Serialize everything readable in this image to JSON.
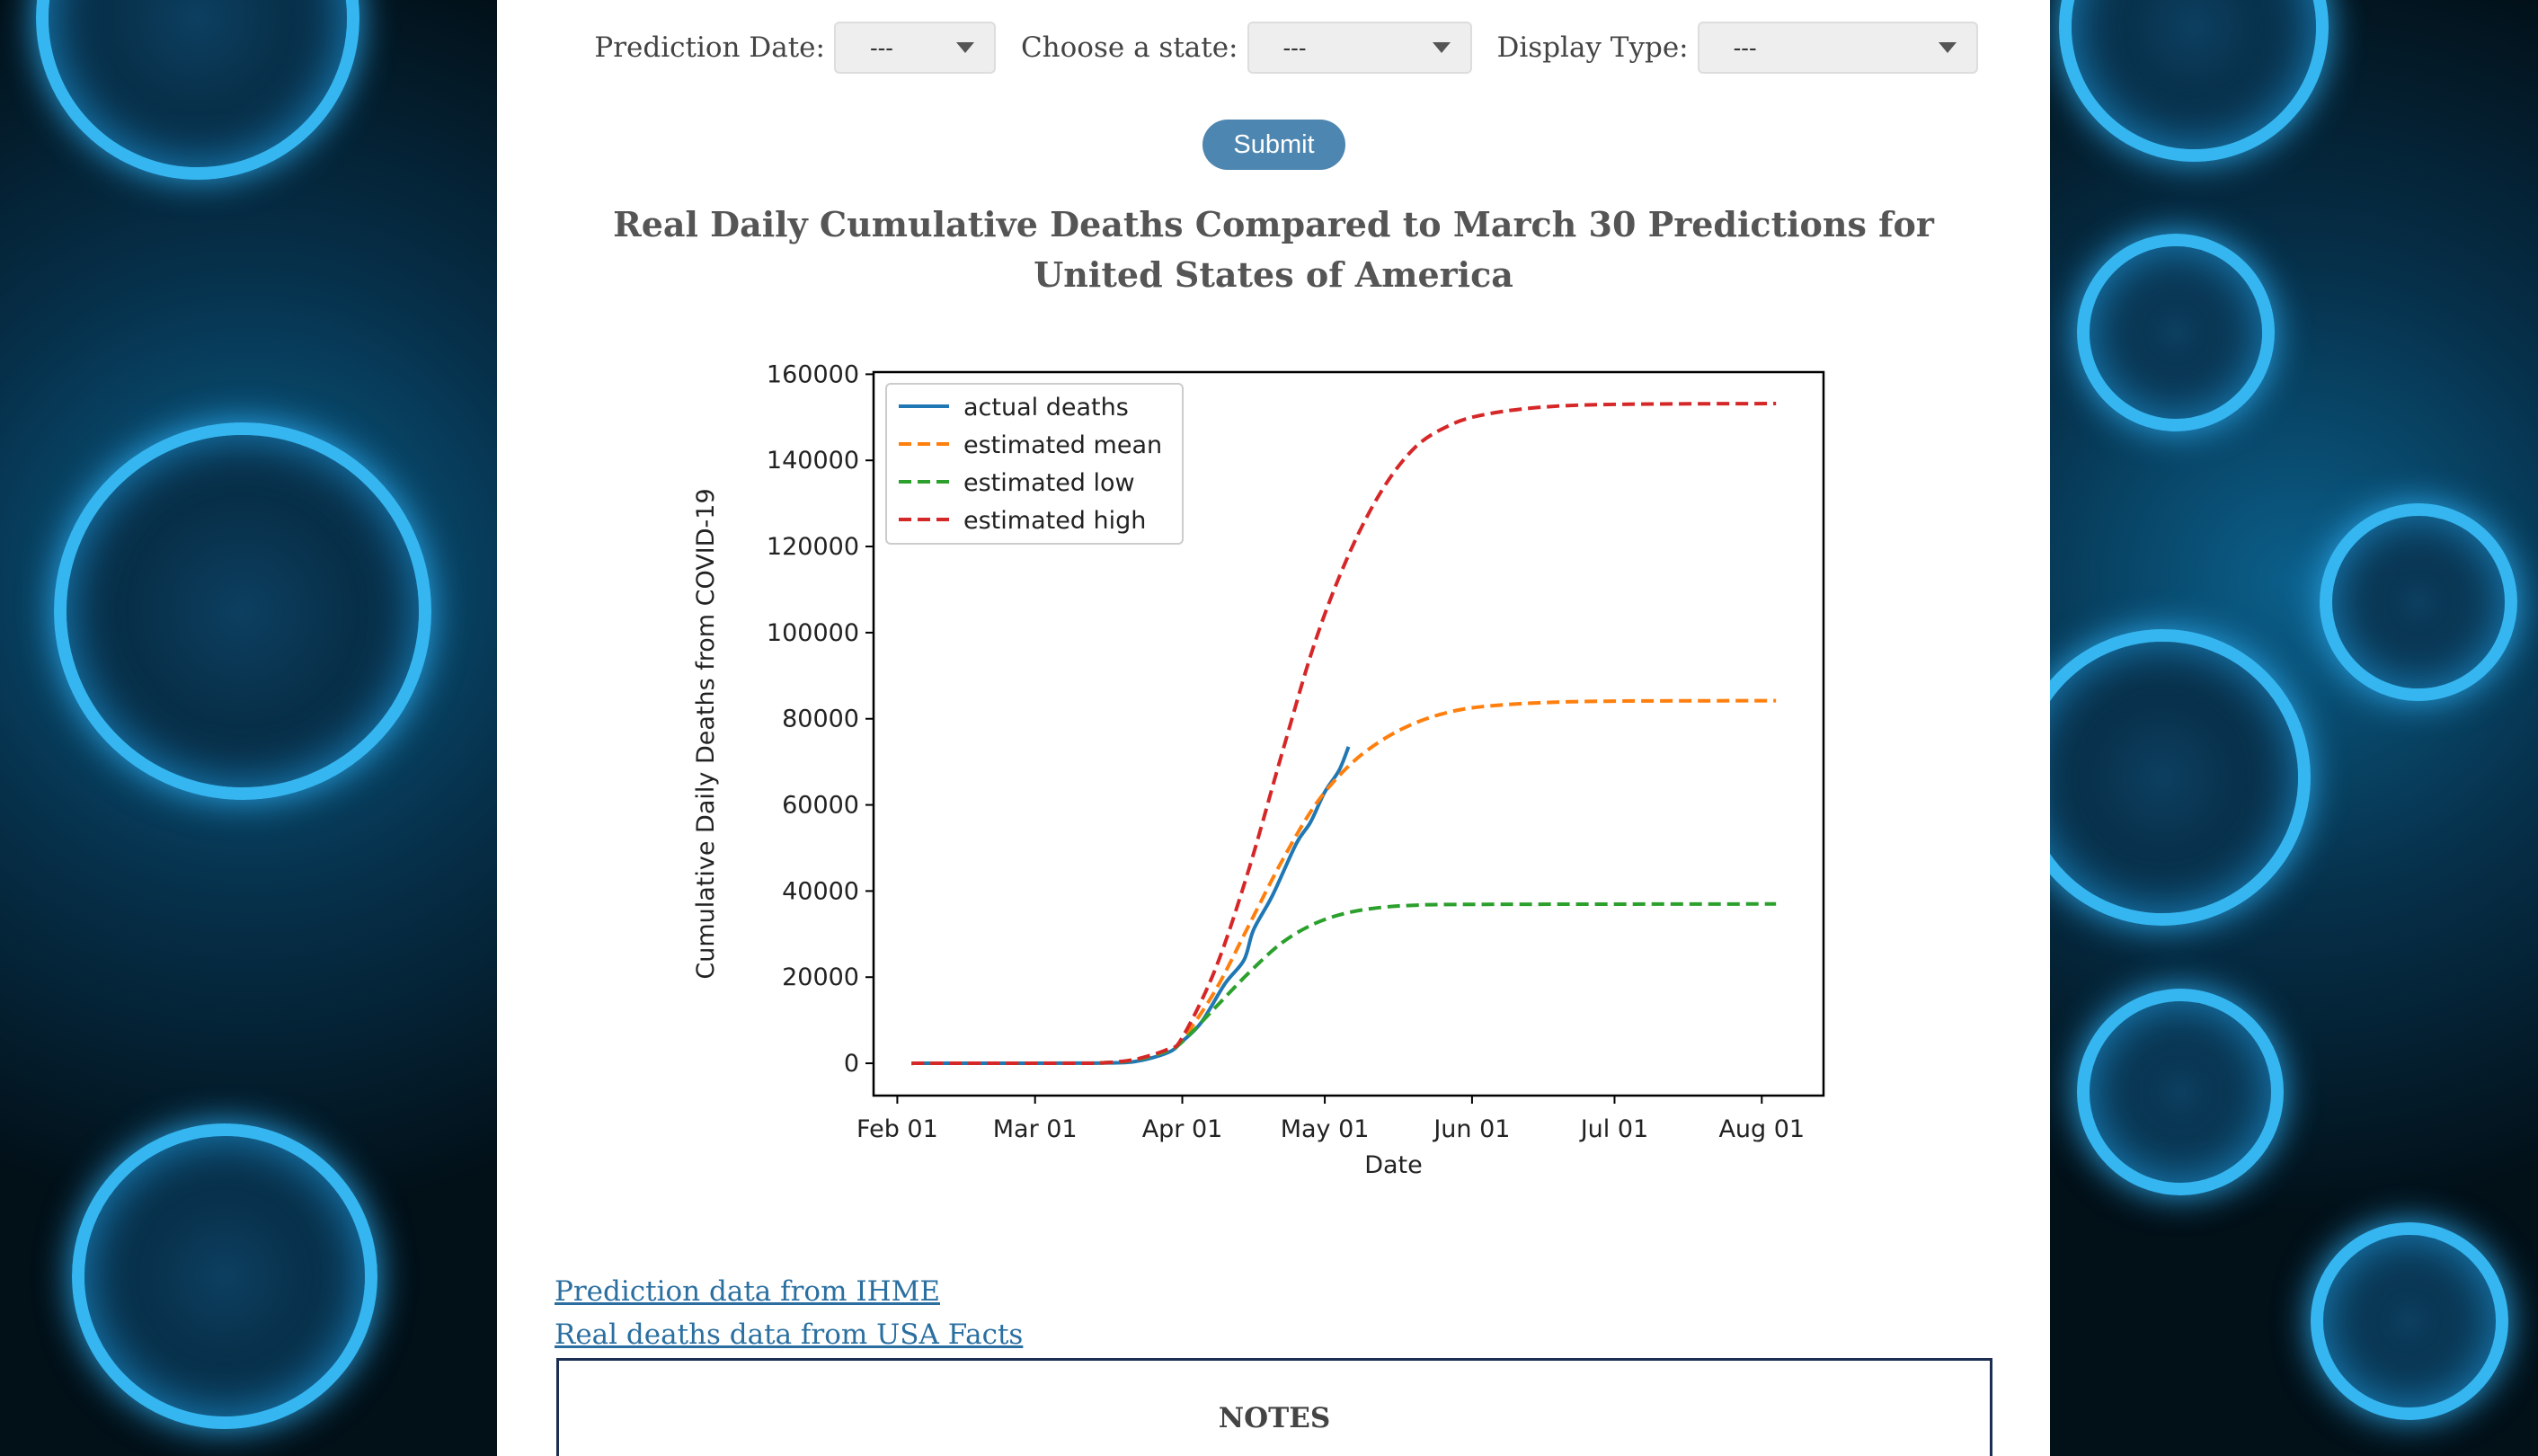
{
  "controls": {
    "prediction_date": {
      "label": "Prediction Date:",
      "value": "---"
    },
    "state": {
      "label": "Choose a state:",
      "value": "---"
    },
    "display_type": {
      "label": "Display Type:",
      "value": "---"
    },
    "submit_label": "Submit"
  },
  "title": "Real Daily Cumulative Deaths Compared to March 30 Predictions for United States of America",
  "links": {
    "ihme": "Prediction data from IHME",
    "usafacts": "Real deaths data from USA Facts"
  },
  "notes": {
    "heading": "NOTES"
  },
  "chart_data": {
    "type": "line",
    "xlabel": "Date",
    "ylabel": "Cumulative Daily Deaths from COVID-19",
    "x_ticks": [
      "Feb 01",
      "Mar 01",
      "Apr 01",
      "May 01",
      "Jun 01",
      "Jul 01",
      "Aug 01"
    ],
    "x_tick_dates": [
      "2020-02-01",
      "2020-03-01",
      "2020-04-01",
      "2020-05-01",
      "2020-06-01",
      "2020-07-01",
      "2020-08-01"
    ],
    "y_ticks": [
      "0",
      "20000",
      "40000",
      "60000",
      "80000",
      "100000",
      "120000",
      "140000",
      "160000"
    ],
    "ylim": [
      -7500,
      160500
    ],
    "xlim": [
      "2020-01-27",
      "2020-08-14"
    ],
    "grid": false,
    "legend": "top-left",
    "series": [
      {
        "name": "actual deaths",
        "color": "#1f77b4",
        "style": "solid",
        "x": [
          "2020-02-04",
          "2020-03-10",
          "2020-03-15",
          "2020-03-22",
          "2020-03-29",
          "2020-04-01",
          "2020-04-05",
          "2020-04-10",
          "2020-04-14",
          "2020-04-16",
          "2020-04-20",
          "2020-04-25",
          "2020-04-28",
          "2020-05-01",
          "2020-05-04",
          "2020-05-06"
        ],
        "y": [
          0,
          30,
          70,
          400,
          2500,
          5100,
          9500,
          18500,
          24000,
          31000,
          39000,
          51000,
          56000,
          63000,
          68000,
          73500
        ]
      },
      {
        "name": "estimated mean",
        "color": "#ff7f0e",
        "style": "dashed",
        "x": [
          "2020-02-04",
          "2020-03-08",
          "2020-03-15",
          "2020-03-22",
          "2020-03-29",
          "2020-04-01",
          "2020-04-08",
          "2020-04-15",
          "2020-04-22",
          "2020-04-29",
          "2020-05-06",
          "2020-05-13",
          "2020-05-20",
          "2020-05-27",
          "2020-06-03",
          "2020-06-15",
          "2020-07-01",
          "2020-08-04"
        ],
        "y": [
          0,
          20,
          100,
          800,
          3000,
          5500,
          17000,
          32000,
          47000,
          60000,
          69000,
          75000,
          79000,
          81500,
          82800,
          83700,
          84100,
          84200
        ]
      },
      {
        "name": "estimated low",
        "color": "#2ca02c",
        "style": "dashed",
        "x": [
          "2020-02-04",
          "2020-03-08",
          "2020-03-15",
          "2020-03-22",
          "2020-03-29",
          "2020-04-01",
          "2020-04-08",
          "2020-04-15",
          "2020-04-22",
          "2020-04-29",
          "2020-05-06",
          "2020-05-13",
          "2020-05-20",
          "2020-06-01",
          "2020-08-04"
        ],
        "y": [
          0,
          20,
          100,
          800,
          3000,
          5000,
          13000,
          21000,
          28000,
          32500,
          35000,
          36200,
          36700,
          36900,
          37000
        ]
      },
      {
        "name": "estimated high",
        "color": "#d62728",
        "style": "dashed",
        "x": [
          "2020-02-04",
          "2020-03-08",
          "2020-03-15",
          "2020-03-22",
          "2020-03-29",
          "2020-04-01",
          "2020-04-08",
          "2020-04-15",
          "2020-04-22",
          "2020-04-29",
          "2020-05-06",
          "2020-05-13",
          "2020-05-20",
          "2020-05-27",
          "2020-06-03",
          "2020-06-15",
          "2020-07-01",
          "2020-08-04"
        ],
        "y": [
          0,
          20,
          100,
          900,
          3300,
          6000,
          22000,
          45000,
          72000,
          98000,
          118000,
          133000,
          143000,
          148000,
          150500,
          152300,
          153000,
          153200
        ]
      }
    ]
  }
}
